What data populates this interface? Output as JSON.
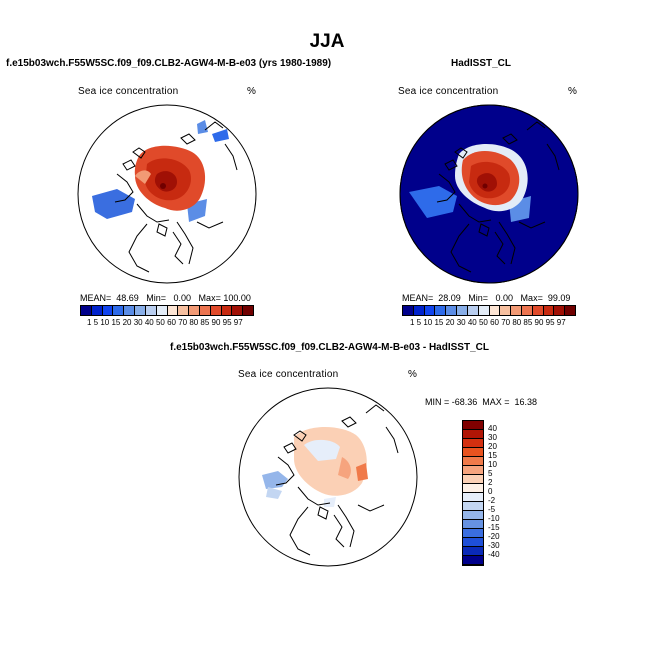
{
  "title": "JJA",
  "panels": {
    "left": {
      "title": "f.e15b03wch.F55W5SC.f09_f09.CLB2-AGW4-M-B-e03 (yrs 1980-1989)",
      "field": "Sea ice concentration",
      "units": "%",
      "stats": "MEAN=  48.69   Min=   0.00   Max= 100.00"
    },
    "right": {
      "title": "HadISST_CL",
      "field": "Sea ice concentration",
      "units": "%",
      "stats": "MEAN=  28.09   Min=   0.00   Max=  99.09"
    },
    "diff": {
      "title": "f.e15b03wch.F55W5SC.f09_f09.CLB2-AGW4-M-B-e03 - HadISST_CL",
      "field": "Sea ice concentration",
      "units": "%",
      "minmax": "MIN = -68.36  MAX =  16.38"
    }
  },
  "colorbar_abs": {
    "ticks": "1  5 10 15 20 30 40 50 60 70 80 85 90 95 97",
    "colors": [
      "#00008b",
      "#0022cc",
      "#1144ee",
      "#2e6bea",
      "#5b8de6",
      "#88aee8",
      "#b9cef0",
      "#e3ecf7",
      "#fde5d4",
      "#f7c0a0",
      "#f29a75",
      "#ec7450",
      "#e04a2a",
      "#c72a10",
      "#a01005",
      "#700000"
    ]
  },
  "colorbar_diff": {
    "labels": [
      "40",
      "30",
      "20",
      "15",
      "10",
      "5",
      "2",
      "0",
      "-2",
      "-5",
      "-10",
      "-15",
      "-20",
      "-30",
      "-40"
    ],
    "colors": [
      "#800000",
      "#b01505",
      "#d33010",
      "#e9531f",
      "#f07a4a",
      "#f6a47e",
      "#fbd0b5",
      "#fdf0e6",
      "#e6eefa",
      "#c3d6f2",
      "#95b6ea",
      "#6692e2",
      "#3a6ee0",
      "#1e4fd8",
      "#0a2ab8",
      "#00008b"
    ]
  }
}
